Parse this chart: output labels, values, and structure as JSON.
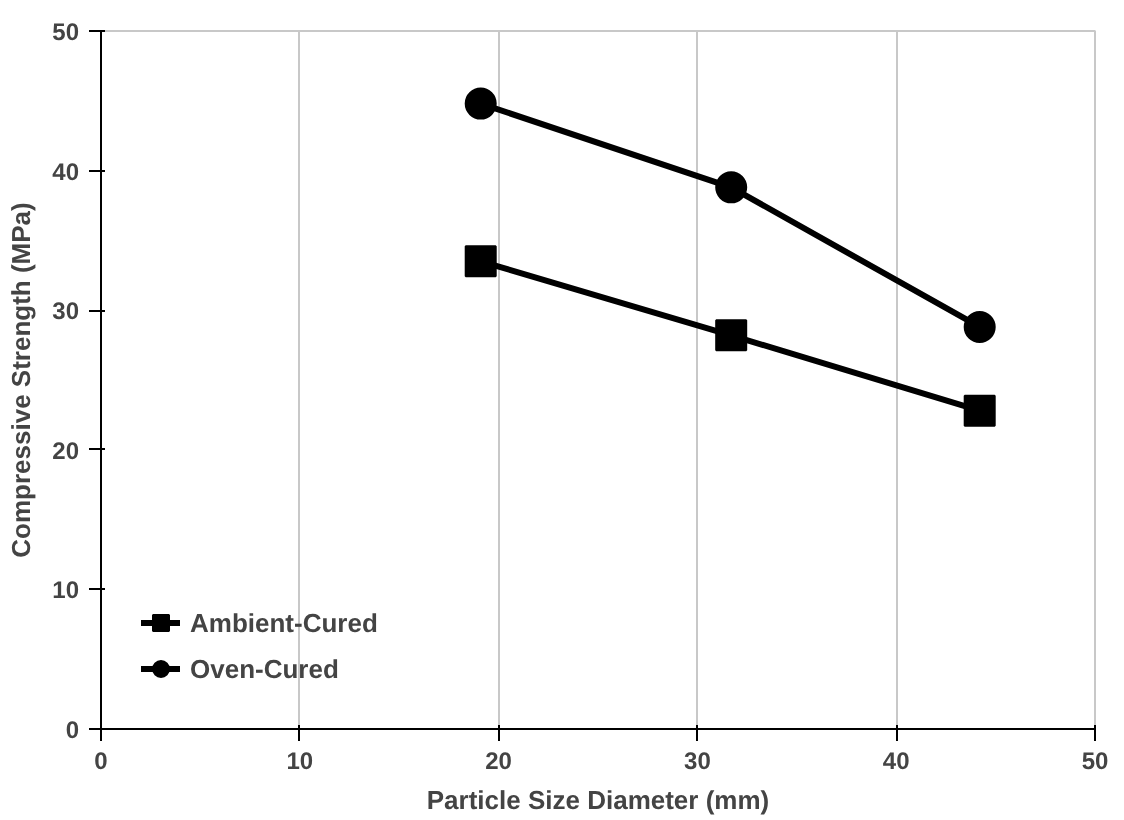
{
  "chart_data": {
    "type": "line",
    "xlabel": "Particle Size Diameter (mm)",
    "ylabel": "Compressive Strength (MPa)",
    "xlim": [
      0,
      50
    ],
    "xticks": [
      0,
      10,
      20,
      30,
      40,
      50
    ],
    "ylim": [
      0,
      50
    ],
    "yticks": [
      0,
      10,
      20,
      30,
      40,
      50
    ],
    "grid": "x",
    "legend": "bottom left",
    "series": [
      {
        "name": "Ambient-Cured",
        "color": "#000000",
        "marker": "square",
        "x": [
          19.1,
          31.7,
          44.2
        ],
        "values": [
          33.5,
          28.2,
          22.8
        ]
      },
      {
        "name": "Oven-Cured",
        "color": "#000000",
        "marker": "circle",
        "x": [
          19.1,
          31.7,
          44.2
        ],
        "values": [
          44.8,
          38.8,
          28.8
        ]
      }
    ]
  }
}
